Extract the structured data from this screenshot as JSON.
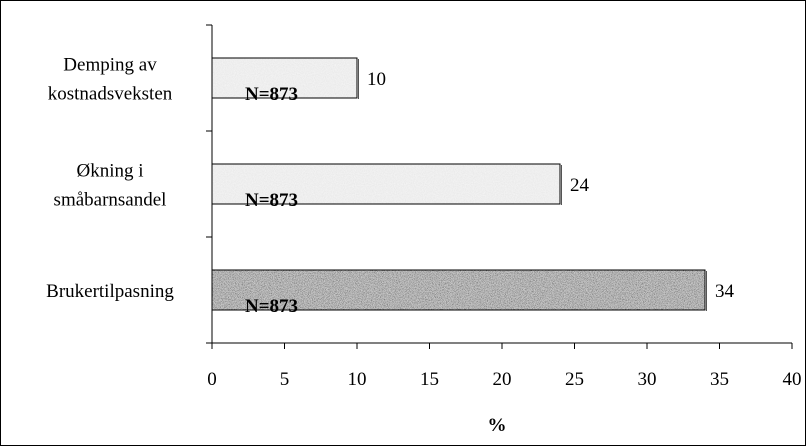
{
  "chart_data": {
    "type": "bar",
    "orientation": "horizontal",
    "categories": [
      [
        "Demping av",
        "kostnadsveksten"
      ],
      [
        "Økning i",
        "småbarnsandel"
      ],
      [
        "Brukertilpasning"
      ]
    ],
    "values": [
      10,
      24,
      34
    ],
    "value_labels": [
      "10",
      "24",
      "34"
    ],
    "bar_labels": [
      "N=873",
      "N=873",
      "N=873"
    ],
    "bar_fills": [
      "light-texture",
      "light-texture",
      "dark-texture"
    ],
    "xlabel": "%",
    "xlim": [
      0,
      40
    ],
    "xticks": [
      0,
      5,
      10,
      15,
      20,
      25,
      30,
      35,
      40
    ],
    "grid": false
  }
}
